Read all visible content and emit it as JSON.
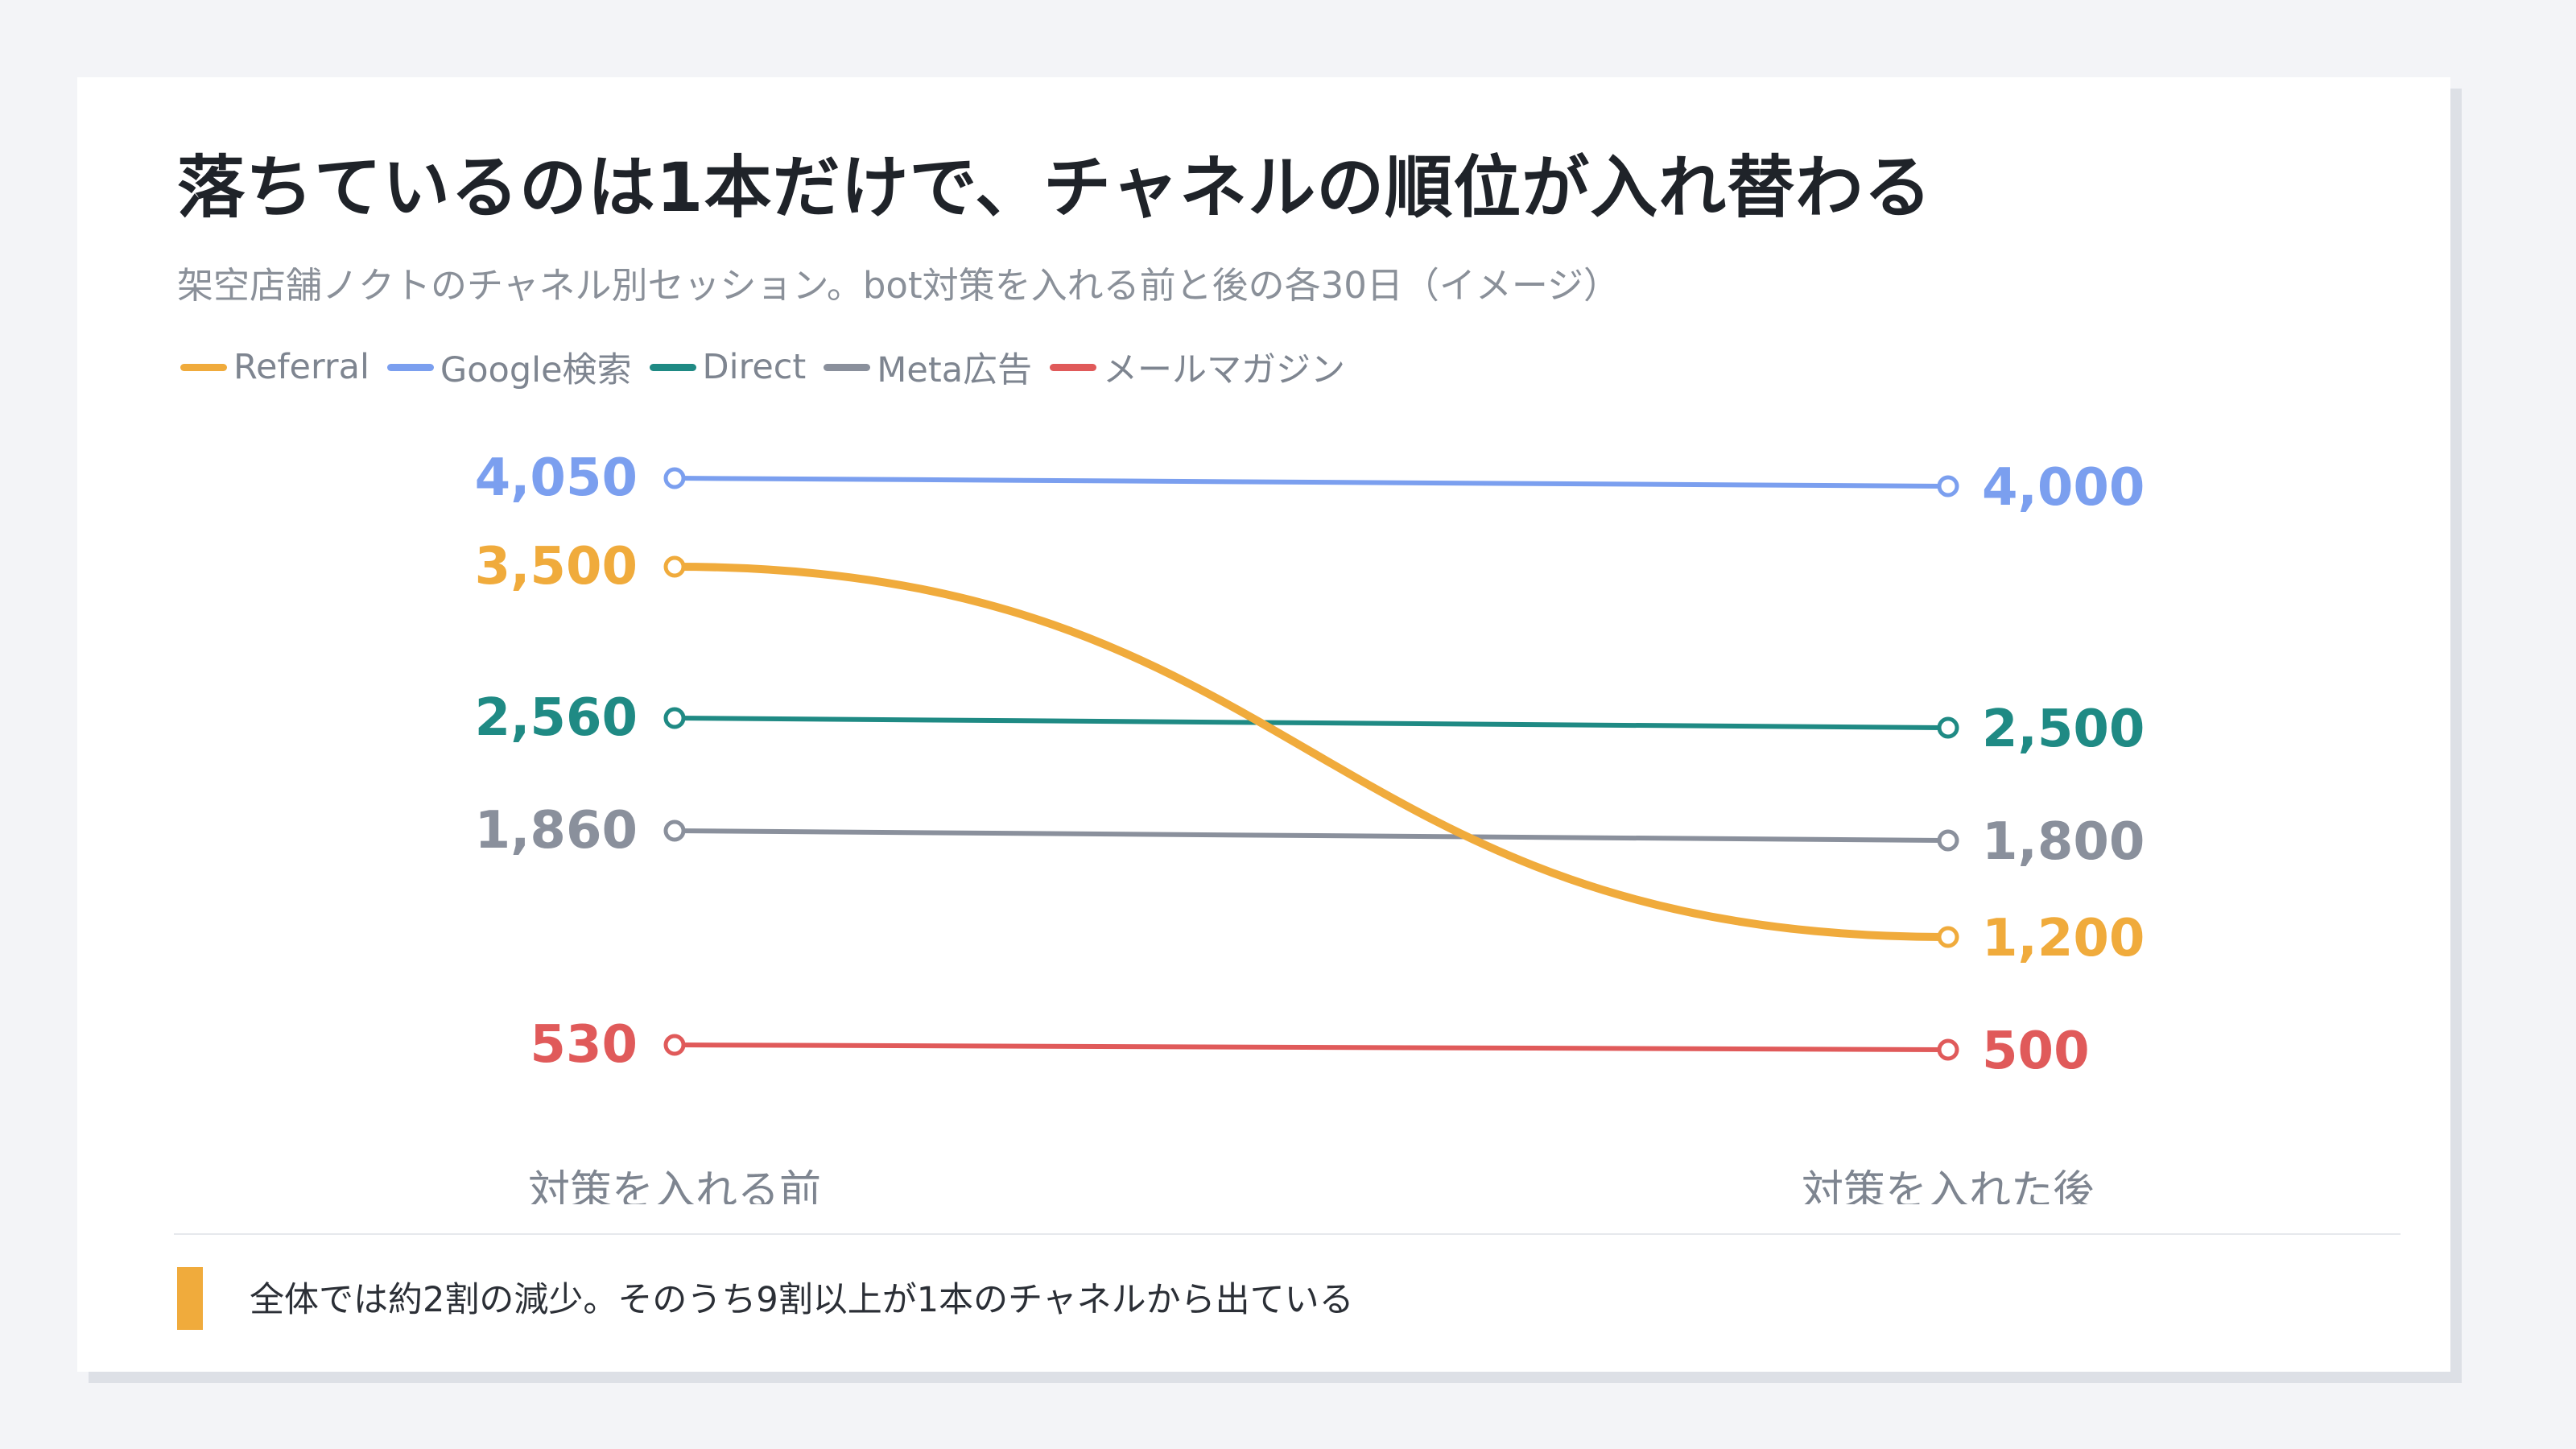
{
  "header": {
    "title": "落ちているのは1本だけで、チャネルの順位が入れ替わる",
    "subtitle": "架空店舗ノクトのチャネル別セッション。bot対策を入れる前と後の各30日（イメージ）"
  },
  "footer": {
    "note": "全体では約2割の減少。そのうち9割以上が1本のチャネルから出ている"
  },
  "chart_data": {
    "type": "line",
    "categories": [
      "対策を入れる前",
      "対策を入れた後"
    ],
    "series": [
      {
        "name": "Referral",
        "color": "#f0ab3c",
        "values": [
          3500,
          1200
        ],
        "labels": [
          "3,500",
          "1,200"
        ],
        "emphasis": true
      },
      {
        "name": "Google検索",
        "color": "#7b9fef",
        "values": [
          4050,
          4000
        ],
        "labels": [
          "4,050",
          "4,000"
        ]
      },
      {
        "name": "Direct",
        "color": "#1f8a84",
        "values": [
          2560,
          2500
        ],
        "labels": [
          "2,560",
          "2,500"
        ]
      },
      {
        "name": "Meta広告",
        "color": "#8a909c",
        "values": [
          1860,
          1800
        ],
        "labels": [
          "1,860",
          "1,800"
        ]
      },
      {
        "name": "メールマガジン",
        "color": "#e05a5a",
        "values": [
          530,
          500
        ],
        "labels": [
          "530",
          "500"
        ]
      }
    ],
    "legend_position": "top-left",
    "grid": false
  }
}
